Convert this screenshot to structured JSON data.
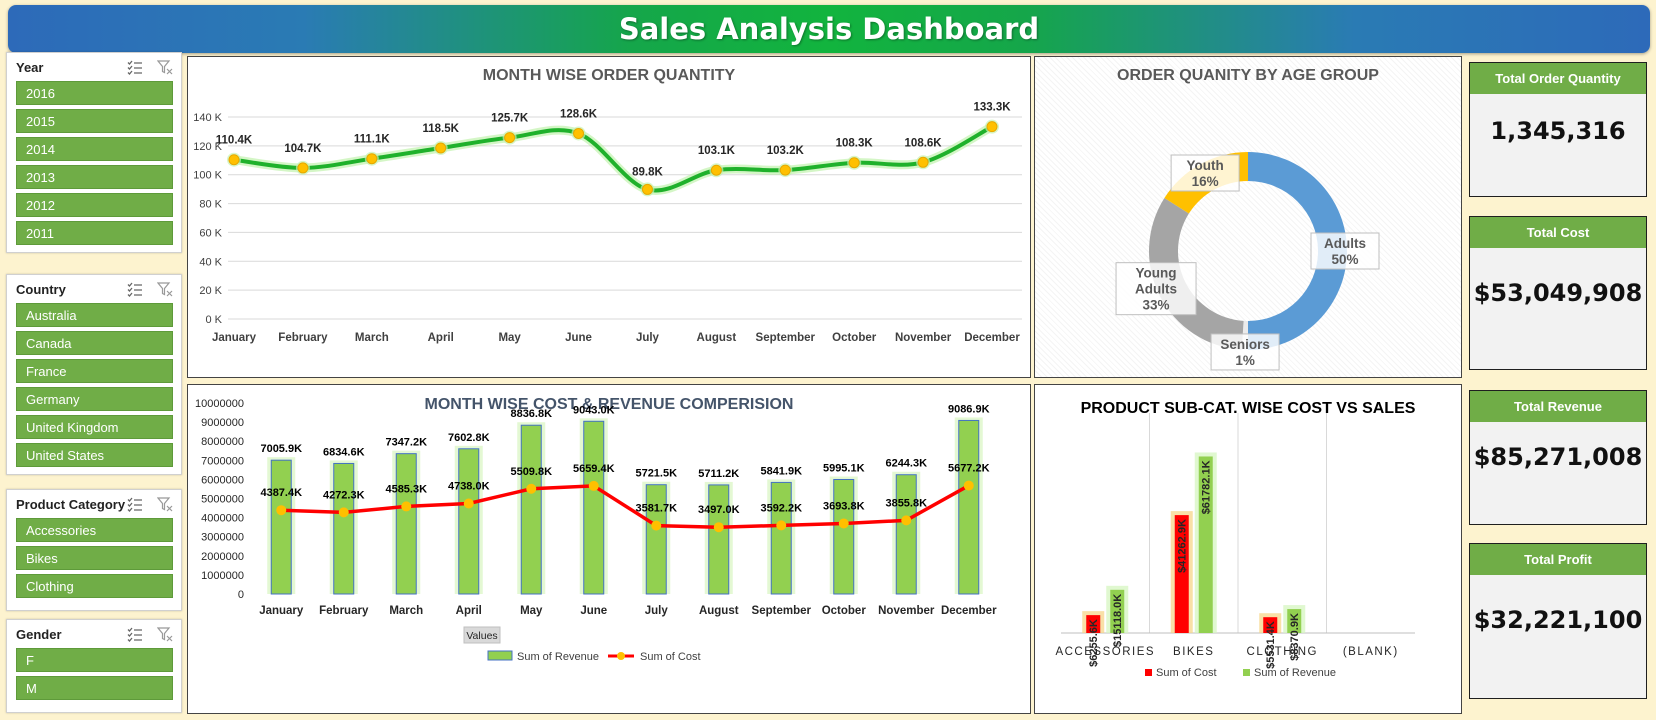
{
  "header": {
    "title": "Sales Analysis Dashboard"
  },
  "slicers": {
    "year": {
      "title": "Year",
      "items": [
        "2016",
        "2015",
        "2014",
        "2013",
        "2012",
        "2011"
      ]
    },
    "country": {
      "title": "Country",
      "items": [
        "Australia",
        "Canada",
        "France",
        "Germany",
        "United Kingdom",
        "United States"
      ]
    },
    "category": {
      "title": "Product Category",
      "items": [
        "Accessories",
        "Bikes",
        "Clothing"
      ]
    },
    "gender": {
      "title": "Gender",
      "items": [
        "F",
        "M"
      ]
    },
    "icons": [
      "multi-select-icon",
      "clear-filter-icon"
    ]
  },
  "colors": {
    "line_green": "#1fb12b",
    "marker_gold": "#ffc000",
    "bar_green": "#92d050",
    "cost_red": "#ff0000",
    "donut_adults": "#5b9bd5",
    "donut_young_adults": "#a5a5a5",
    "donut_youth": "#ffc000",
    "kpi_green": "#70ad47"
  },
  "chart_data": [
    {
      "id": "order_qty",
      "type": "line",
      "title": "MONTH WISE ORDER QUANTITY",
      "categories": [
        "January",
        "February",
        "March",
        "April",
        "May",
        "June",
        "July",
        "August",
        "September",
        "October",
        "November",
        "December"
      ],
      "values": [
        110.4,
        104.7,
        111.1,
        118.5,
        125.7,
        128.6,
        89.8,
        103.1,
        103.2,
        108.3,
        108.6,
        133.3
      ],
      "data_labels": [
        "110.4K",
        "104.7K",
        "111.1K",
        "118.5K",
        "125.7K",
        "128.6K",
        "89.8K",
        "103.1K",
        "103.2K",
        "108.3K",
        "108.6K",
        "133.3K"
      ],
      "y_ticks": [
        "0 K",
        "20 K",
        "40 K",
        "60 K",
        "80 K",
        "100 K",
        "120 K",
        "140 K"
      ],
      "ylim": [
        0,
        140
      ],
      "grid": true
    },
    {
      "id": "age_group",
      "type": "pie",
      "title": "ORDER QUANITY BY AGE GROUP",
      "slices": [
        {
          "name": "Adults",
          "value": 50,
          "label": "50%"
        },
        {
          "name": "Seniors",
          "value": 1,
          "label": "1%"
        },
        {
          "name": "Young Adults",
          "value": 33,
          "label": "33%"
        },
        {
          "name": "Youth",
          "value": 16,
          "label": "16%"
        }
      ]
    },
    {
      "id": "cost_revenue",
      "type": "bar",
      "title": "MONTH WISE COST & REVENUE COMPERISION",
      "categories": [
        "January",
        "February",
        "March",
        "April",
        "May",
        "June",
        "July",
        "August",
        "September",
        "October",
        "November",
        "December"
      ],
      "series": [
        {
          "name": "Sum of Revenue",
          "type": "bar",
          "values": [
            7005900,
            6834600,
            7347200,
            7602800,
            8836800,
            9043000,
            5721500,
            5711200,
            5841900,
            5995100,
            6244300,
            9086900
          ],
          "labels": [
            "7005.9K",
            "6834.6K",
            "7347.2K",
            "7602.8K",
            "8836.8K",
            "9043.0K",
            "5721.5K",
            "5711.2K",
            "5841.9K",
            "5995.1K",
            "6244.3K",
            "9086.9K"
          ]
        },
        {
          "name": "Sum of Cost",
          "type": "line",
          "values": [
            4387400,
            4272300,
            4585300,
            4738000,
            5509800,
            5659400,
            3581700,
            3497000,
            3592200,
            3693800,
            3855800,
            5677200
          ],
          "labels": [
            "4387.4K",
            "4272.3K",
            "4585.3K",
            "4738.0K",
            "5509.8K",
            "5659.4K",
            "3581.7K",
            "3497.0K",
            "3592.2K",
            "3693.8K",
            "3855.8K",
            "5677.2K"
          ]
        }
      ],
      "y_ticks": [
        "0",
        "1000000",
        "2000000",
        "3000000",
        "4000000",
        "5000000",
        "6000000",
        "7000000",
        "8000000",
        "9000000",
        "10000000"
      ],
      "ylim": [
        0,
        10000000
      ],
      "field_button": "Values",
      "legend": [
        "Sum of Revenue",
        "Sum of Cost"
      ],
      "legend_position": "bottom"
    },
    {
      "id": "subcat",
      "type": "bar",
      "title": "PRODUCT SUB-CAT. WISE COST VS SALES",
      "categories": [
        "ACCESSORIES",
        "BIKES",
        "CLOTHING",
        "(BLANK)"
      ],
      "series": [
        {
          "name": "Sum of Cost",
          "values": [
            6255600,
            41262900,
            5531400,
            0
          ],
          "labels": [
            "$6255.6K",
            "$41262.9K",
            "$5531.4K",
            ""
          ]
        },
        {
          "name": "Sum of Revenue",
          "values": [
            15118000,
            61782100,
            8370900,
            0
          ],
          "labels": [
            "$15118.0K",
            "$61782.1K",
            "$8370.9K",
            ""
          ]
        }
      ],
      "ylim": [
        0,
        70000000
      ],
      "legend": [
        "Sum of Cost",
        "Sum of Revenue"
      ],
      "legend_position": "bottom"
    }
  ],
  "kpis": [
    {
      "label": "Total Order Quantity",
      "value": "1,345,316"
    },
    {
      "label": "Total Cost",
      "value": "$53,049,908"
    },
    {
      "label": "Total Revenue",
      "value": "$85,271,008"
    },
    {
      "label": "Total Profit",
      "value": "$32,221,100"
    }
  ]
}
